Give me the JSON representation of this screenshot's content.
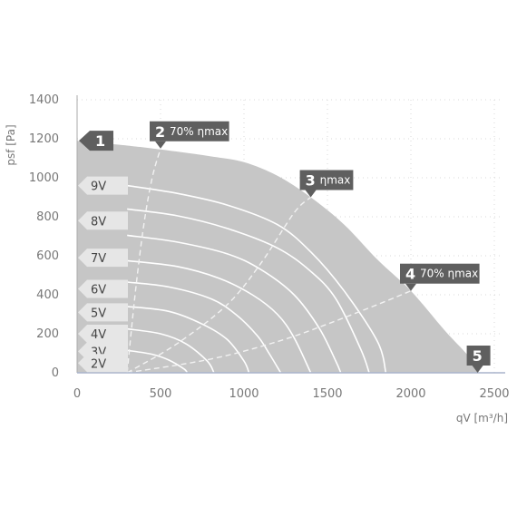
{
  "chart_data": {
    "type": "line",
    "xlabel": "qV [m³/h]",
    "ylabel": "psf [Pa]",
    "xlim": [
      0,
      2500
    ],
    "ylim": [
      0,
      1400
    ],
    "xticks": [
      0,
      500,
      1000,
      1500,
      2000,
      2500
    ],
    "yticks": [
      0,
      200,
      400,
      600,
      800,
      1000,
      1200,
      1400
    ],
    "grid": true,
    "colors": {
      "envelope": "#c6c6c6",
      "curve": "#ffffff",
      "callout": "#5f5f5f",
      "speed_tab": "#e6e6e6",
      "axis": "#aaaaaa",
      "baseline": "#a8b4cc"
    },
    "envelope": [
      [
        0,
        1190
      ],
      [
        300,
        1165
      ],
      [
        500,
        1145
      ],
      [
        800,
        1110
      ],
      [
        1000,
        1080
      ],
      [
        1200,
        1010
      ],
      [
        1400,
        900
      ],
      [
        1600,
        760
      ],
      [
        1800,
        580
      ],
      [
        2000,
        420
      ],
      [
        2200,
        220
      ],
      [
        2350,
        80
      ],
      [
        2400,
        0
      ],
      [
        0,
        0
      ]
    ],
    "speed_curves": [
      {
        "name": "9V",
        "points": [
          [
            300,
            960
          ],
          [
            600,
            920
          ],
          [
            900,
            860
          ],
          [
            1200,
            760
          ],
          [
            1400,
            620
          ],
          [
            1600,
            420
          ],
          [
            1800,
            160
          ],
          [
            1850,
            0
          ]
        ]
      },
      {
        "name": "8V",
        "points": [
          [
            300,
            840
          ],
          [
            600,
            805
          ],
          [
            900,
            740
          ],
          [
            1200,
            640
          ],
          [
            1400,
            520
          ],
          [
            1550,
            380
          ],
          [
            1700,
            120
          ],
          [
            1750,
            0
          ]
        ]
      },
      {
        "name": "7V",
        "points": [
          [
            300,
            705
          ],
          [
            600,
            670
          ],
          [
            900,
            610
          ],
          [
            1100,
            530
          ],
          [
            1300,
            400
          ],
          [
            1450,
            230
          ],
          [
            1550,
            60
          ],
          [
            1580,
            0
          ]
        ]
      },
      {
        "name": "6V",
        "points": [
          [
            300,
            575
          ],
          [
            600,
            545
          ],
          [
            850,
            485
          ],
          [
            1050,
            400
          ],
          [
            1200,
            300
          ],
          [
            1300,
            180
          ],
          [
            1400,
            0
          ]
        ]
      },
      {
        "name": "5V",
        "points": [
          [
            300,
            465
          ],
          [
            550,
            440
          ],
          [
            800,
            380
          ],
          [
            950,
            300
          ],
          [
            1080,
            190
          ],
          [
            1150,
            100
          ],
          [
            1220,
            0
          ]
        ]
      },
      {
        "name": "4V",
        "points": [
          [
            300,
            340
          ],
          [
            550,
            315
          ],
          [
            750,
            250
          ],
          [
            900,
            170
          ],
          [
            1000,
            60
          ],
          [
            1030,
            0
          ]
        ]
      },
      {
        "name": "3V",
        "points": [
          [
            300,
            225
          ],
          [
            500,
            200
          ],
          [
            650,
            150
          ],
          [
            780,
            60
          ],
          [
            820,
            0
          ]
        ]
      },
      {
        "name": "2V",
        "points": [
          [
            300,
            115
          ],
          [
            450,
            95
          ],
          [
            550,
            65
          ],
          [
            640,
            20
          ],
          [
            660,
            0
          ]
        ]
      }
    ],
    "efficiency_curves": [
      {
        "points": [
          [
            300,
            0
          ],
          [
            350,
            420
          ],
          [
            400,
            760
          ],
          [
            450,
            1000
          ],
          [
            500,
            1150
          ]
        ]
      },
      {
        "points": [
          [
            300,
            0
          ],
          [
            600,
            150
          ],
          [
            900,
            350
          ],
          [
            1100,
            560
          ],
          [
            1300,
            820
          ],
          [
            1400,
            900
          ]
        ]
      },
      {
        "points": [
          [
            300,
            0
          ],
          [
            800,
            70
          ],
          [
            1200,
            160
          ],
          [
            1500,
            250
          ],
          [
            1800,
            350
          ],
          [
            2000,
            420
          ]
        ]
      }
    ],
    "callouts": [
      {
        "num": "1",
        "text": "",
        "at": [
          0,
          1190
        ]
      },
      {
        "num": "2",
        "text": "70% ηmax",
        "at": [
          500,
          1150
        ]
      },
      {
        "num": "3",
        "text": "ηmax",
        "at": [
          1400,
          900
        ]
      },
      {
        "num": "4",
        "text": "70% ηmax",
        "at": [
          2000,
          420
        ]
      },
      {
        "num": "5",
        "text": "",
        "at": [
          2400,
          0
        ]
      }
    ],
    "speed_labels": [
      {
        "label": "9V",
        "y": 960
      },
      {
        "label": "8V",
        "y": 780
      },
      {
        "label": "7V",
        "y": 590
      },
      {
        "label": "6V",
        "y": 430
      },
      {
        "label": "5V",
        "y": 310
      },
      {
        "label": "4V",
        "y": 200
      },
      {
        "label": "3V",
        "y": 110
      },
      {
        "label": "2V",
        "y": 50
      }
    ]
  }
}
